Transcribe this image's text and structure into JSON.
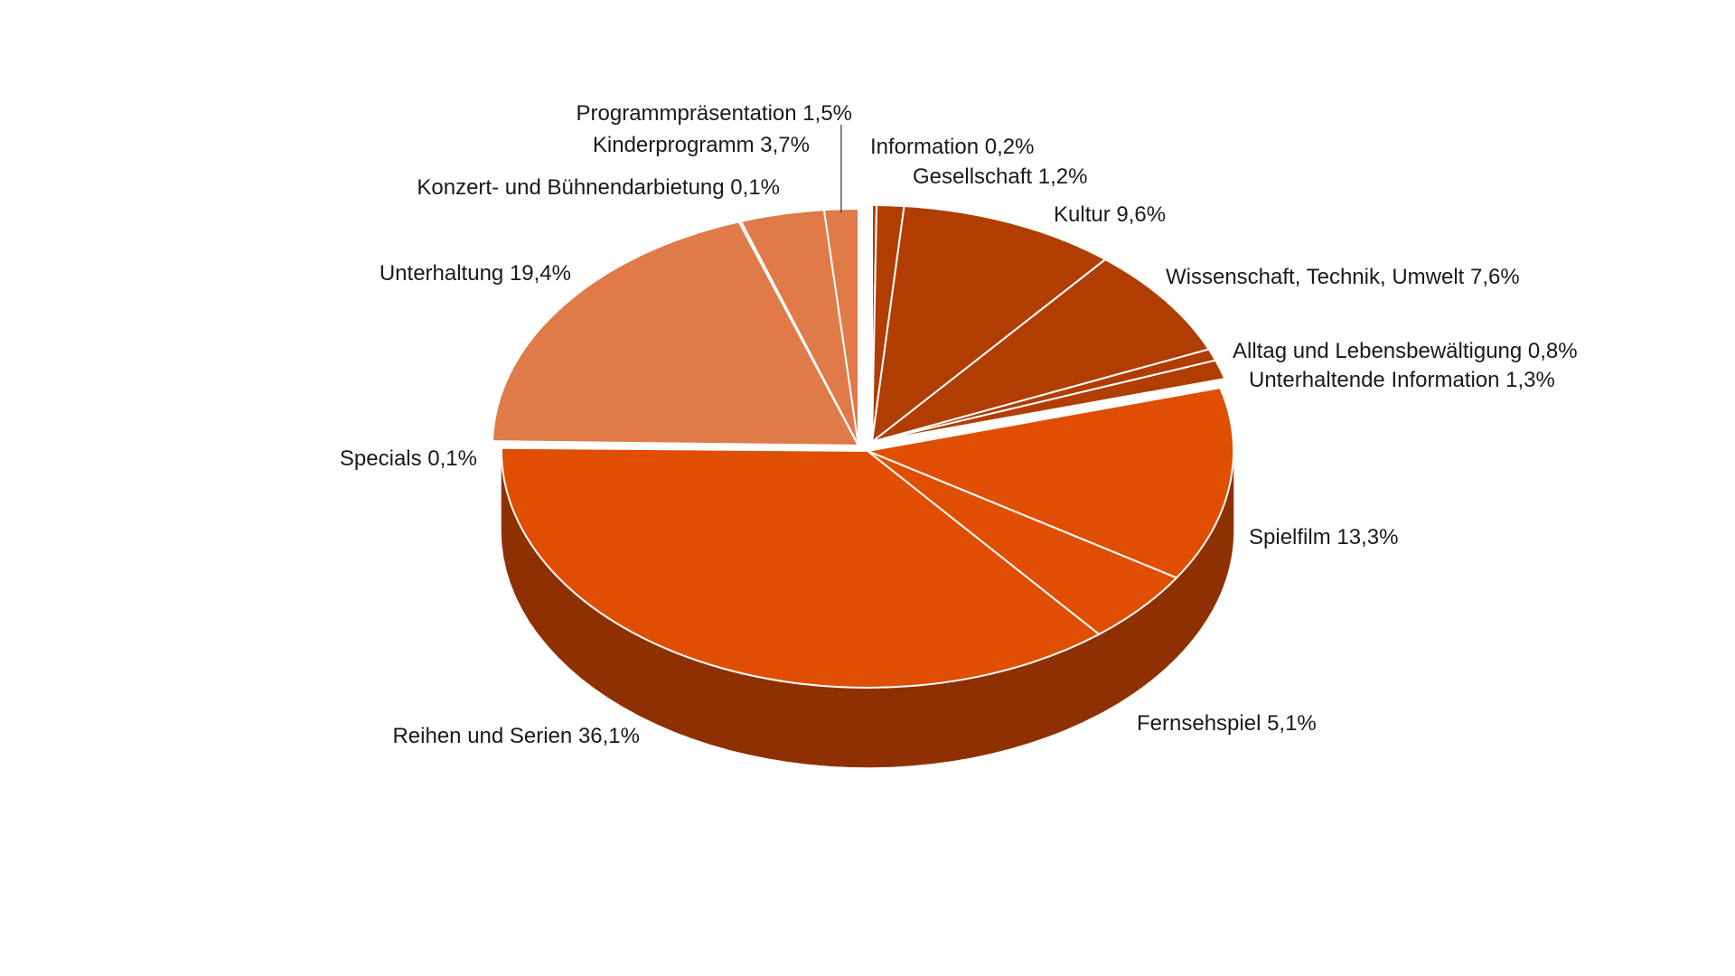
{
  "chart_data": {
    "type": "pie",
    "title": "",
    "series": [
      {
        "values": [
          0.2,
          1.2,
          9.6,
          7.6,
          0.8,
          1.3,
          13.3,
          5.1,
          36.1,
          0.1,
          19.4,
          0.1,
          3.7,
          1.5
        ],
        "categories": [
          "Information",
          "Gesellschaft",
          "Kultur",
          "Wissenschaft, Technik, Umwelt",
          "Alltag und Lebensbewältigung",
          "Unterhaltende Information",
          "Spielfilm",
          "Fernsehspiel",
          "Reihen und Serien",
          "Specials",
          "Unterhaltung",
          "Konzert- und Bühnendarbietung",
          "Kinderprogramm",
          "Programmpräsentation"
        ],
        "value_labels": [
          "0,2%",
          "1,2%",
          "9,6%",
          "7,6%",
          "0,8%",
          "1,3%",
          "13,3%",
          "5,1%",
          "36,1%",
          "0,1%",
          "19,4%",
          "0,1%",
          "3,7%",
          "1,5%"
        ]
      }
    ],
    "colors": {
      "group_information": "#b03d02",
      "group_fiction": "#e04e02",
      "group_entertainment": "#e07a48"
    },
    "slice_groups": [
      "group_information",
      "group_information",
      "group_information",
      "group_information",
      "group_information",
      "group_information",
      "group_fiction",
      "group_fiction",
      "group_fiction",
      "group_entertainment",
      "group_entertainment",
      "group_entertainment",
      "group_entertainment",
      "group_entertainment"
    ],
    "legend": "none",
    "rendering": "3d-exploded-groups"
  }
}
